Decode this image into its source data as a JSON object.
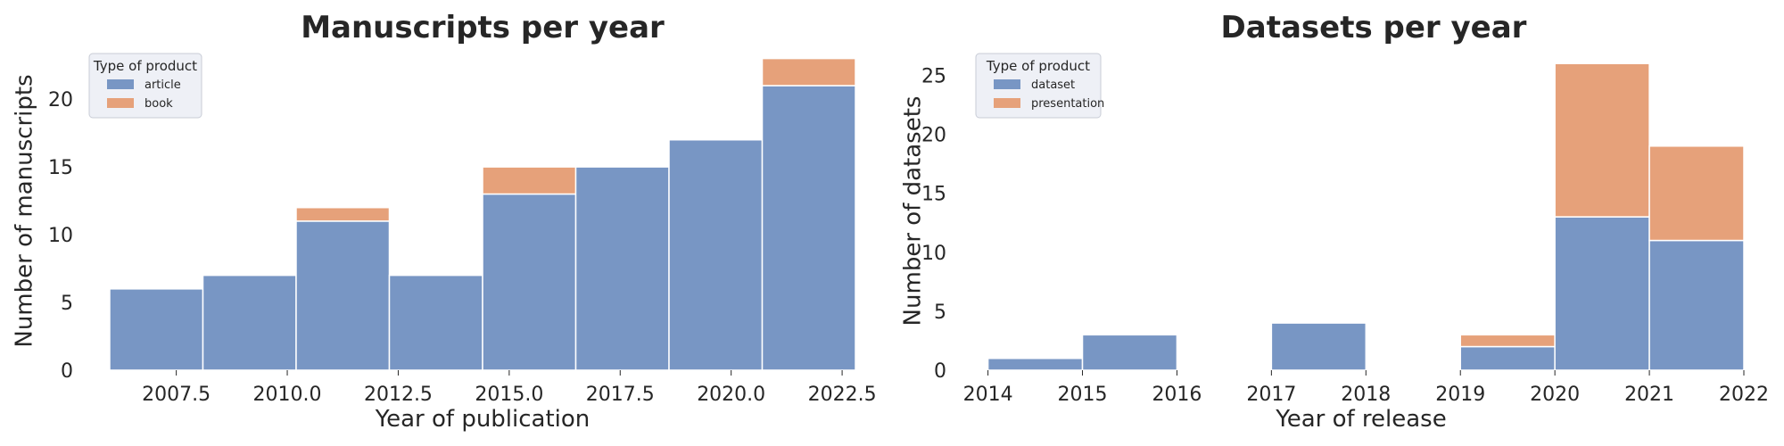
{
  "chart_data": [
    {
      "type": "bar",
      "stacked": true,
      "title": "Manuscripts per year",
      "xlabel": "Year of publication",
      "ylabel": "Number of manuscripts",
      "xlim": [
        2005.9,
        2022.9
      ],
      "ylim": [
        0,
        23.5
      ],
      "xticks": [
        2007.5,
        2010.0,
        2012.5,
        2015.0,
        2017.5,
        2020.0,
        2022.5
      ],
      "xtick_labels": [
        "2007.5",
        "2010.0",
        "2012.5",
        "2015.0",
        "2017.5",
        "2020.0",
        "2022.5"
      ],
      "yticks": [
        0,
        5,
        10,
        15,
        20
      ],
      "yticks_labels": [
        "0",
        "5",
        "10",
        "15",
        "20"
      ],
      "grid": false,
      "legend": {
        "title": "Type of product",
        "placement": "top-left",
        "entries": [
          "article",
          "book"
        ]
      },
      "bin_edges": [
        2006.0,
        2008.1,
        2010.2,
        2012.3,
        2014.4,
        2016.5,
        2018.6,
        2020.7,
        2022.8
      ],
      "series": [
        {
          "name": "article",
          "color": "#7896c4",
          "values": [
            6,
            7,
            11,
            7,
            13,
            15,
            17,
            21
          ]
        },
        {
          "name": "book",
          "color": "#e6a17a",
          "values": [
            0,
            0,
            1,
            0,
            2,
            0,
            0,
            2
          ]
        }
      ]
    },
    {
      "type": "bar",
      "stacked": true,
      "title": "Datasets per year",
      "xlabel": "Year of release",
      "ylabel": "Number of datasets",
      "xlim": [
        2013.9,
        2022.0
      ],
      "ylim": [
        0,
        27
      ],
      "xticks": [
        2014,
        2015,
        2016,
        2017,
        2018,
        2019,
        2020,
        2021,
        2022
      ],
      "xtick_labels": [
        "2014",
        "2015",
        "2016",
        "2017",
        "2018",
        "2019",
        "2020",
        "2021",
        "2022"
      ],
      "yticks": [
        0,
        5,
        10,
        15,
        20,
        25
      ],
      "yticks_labels": [
        "0",
        "5",
        "10",
        "15",
        "20",
        "25"
      ],
      "grid": false,
      "legend": {
        "title": "Type of product",
        "placement": "top-left",
        "entries": [
          "dataset",
          "presentation"
        ]
      },
      "bin_edges": [
        2014,
        2015,
        2016,
        2017,
        2018,
        2019,
        2020,
        2021,
        2022
      ],
      "series": [
        {
          "name": "dataset",
          "color": "#7896c4",
          "values": [
            1,
            3,
            0,
            4,
            0,
            2,
            13,
            11
          ]
        },
        {
          "name": "presentation",
          "color": "#e6a17a",
          "values": [
            0,
            0,
            0,
            0,
            0,
            1,
            13,
            8
          ]
        }
      ]
    }
  ]
}
